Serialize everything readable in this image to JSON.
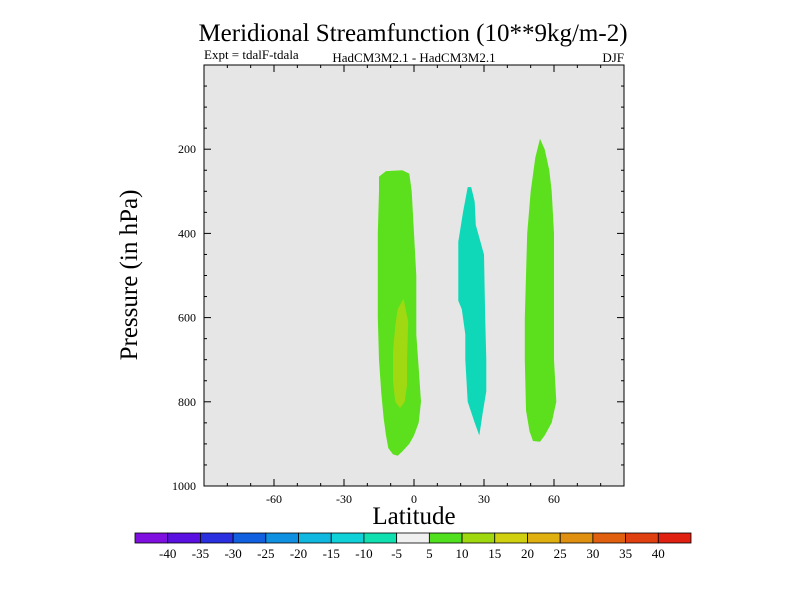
{
  "chart_data": {
    "type": "filled-contour",
    "title": "Meridional Streamfunction (10**9kg/m-2)",
    "subtitle_left": "Expt = tdalF-tdala",
    "subtitle_center": "HadCM3M2.1 - HadCM3M2.1",
    "subtitle_right": "DJF",
    "xlabel": "Latitude",
    "ylabel": "Pressure (in hPa)",
    "xlim": [
      -90,
      90
    ],
    "ylim": [
      1000,
      0
    ],
    "x_ticks": [
      -60,
      -30,
      0,
      30,
      60
    ],
    "x_tick_labels": [
      "-60",
      "-30",
      "0",
      "30",
      "60"
    ],
    "y_ticks": [
      200,
      400,
      600,
      800,
      1000
    ],
    "y_tick_labels": [
      "200",
      "400",
      "600",
      "800",
      "1000"
    ],
    "background_color": "#e6e6e6",
    "regions": [
      {
        "name": "southern-cell-band",
        "range": "5 to 10",
        "color": "#5ce01e",
        "outline": [
          [
            -15,
            265
          ],
          [
            -12,
            252
          ],
          [
            -5,
            250
          ],
          [
            -2,
            258
          ],
          [
            -1,
            300
          ],
          [
            0,
            400
          ],
          [
            1,
            500
          ],
          [
            1,
            600
          ],
          [
            1,
            640
          ],
          [
            2,
            720
          ],
          [
            3,
            800
          ],
          [
            2,
            850
          ],
          [
            0,
            880
          ],
          [
            -2,
            900
          ],
          [
            -5,
            918
          ],
          [
            -7,
            928
          ],
          [
            -9,
            925
          ],
          [
            -11,
            910
          ],
          [
            -12,
            880
          ],
          [
            -13,
            840
          ],
          [
            -14,
            780
          ],
          [
            -15,
            700
          ],
          [
            -15.5,
            600
          ],
          [
            -15.5,
            500
          ],
          [
            -15.5,
            400
          ],
          [
            -15,
            300
          ]
        ]
      },
      {
        "name": "southern-cell-core",
        "range": "10 to 15",
        "color": "#a0d812",
        "outline": [
          [
            -7,
            580
          ],
          [
            -4.5,
            555
          ],
          [
            -2.5,
            610
          ],
          [
            -3,
            700
          ],
          [
            -3,
            760
          ],
          [
            -4,
            800
          ],
          [
            -6,
            815
          ],
          [
            -8,
            800
          ],
          [
            -9,
            750
          ],
          [
            -9,
            680
          ],
          [
            -8,
            620
          ]
        ]
      },
      {
        "name": "tropical-cell",
        "range": "-10 to -5",
        "color": "#0fd8b8",
        "outline": [
          [
            23,
            290
          ],
          [
            24.5,
            290
          ],
          [
            26,
            325
          ],
          [
            26.5,
            380
          ],
          [
            30,
            450
          ],
          [
            30.5,
            600
          ],
          [
            31,
            700
          ],
          [
            31,
            775
          ],
          [
            29.5,
            825
          ],
          [
            28,
            880
          ],
          [
            26,
            850
          ],
          [
            23,
            800
          ],
          [
            22,
            700
          ],
          [
            22,
            640
          ],
          [
            20.5,
            580
          ],
          [
            19,
            560
          ],
          [
            19,
            500
          ],
          [
            19,
            420
          ],
          [
            21,
            350
          ]
        ]
      },
      {
        "name": "northern-cell-band",
        "range": "5 to 10",
        "color": "#5ce01e",
        "outline": [
          [
            54,
            175
          ],
          [
            56,
            200
          ],
          [
            58,
            250
          ],
          [
            59,
            300
          ],
          [
            60,
            400
          ],
          [
            60,
            500
          ],
          [
            60,
            600
          ],
          [
            60,
            700
          ],
          [
            61,
            800
          ],
          [
            59,
            850
          ],
          [
            56,
            880
          ],
          [
            54,
            895
          ],
          [
            51,
            893
          ],
          [
            49.5,
            870
          ],
          [
            48,
            820
          ],
          [
            47.5,
            700
          ],
          [
            47.5,
            600
          ],
          [
            48,
            500
          ],
          [
            48.5,
            400
          ],
          [
            50,
            300
          ],
          [
            52,
            220
          ]
        ]
      }
    ],
    "colorbar": {
      "colors": [
        "#8010e0",
        "#5a10e0",
        "#2a30e0",
        "#1060e0",
        "#1090e0",
        "#10b8e0",
        "#10d0d8",
        "#10e0b0",
        "#f0f0f0",
        "#50e020",
        "#a0d810",
        "#d0d010",
        "#e0b010",
        "#e09010",
        "#e06010",
        "#e04010",
        "#e02010"
      ],
      "labels": [
        "-40",
        "-35",
        "-30",
        "-25",
        "-20",
        "-15",
        "-10",
        "-5",
        "5",
        "10",
        "15",
        "20",
        "25",
        "30",
        "35",
        "40"
      ]
    }
  }
}
